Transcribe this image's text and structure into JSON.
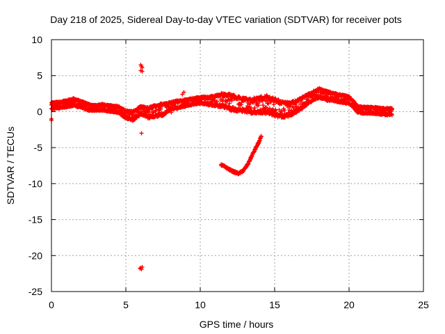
{
  "chart_data": {
    "type": "scatter",
    "title": "Day 218 of 2025, Sidereal Day-to-day VTEC variation (SDTVAR) for receiver pots",
    "xlabel": "GPS time / hours",
    "ylabel": "SDTVAR / TECUs",
    "xlim": [
      0,
      25
    ],
    "ylim": [
      -25,
      10
    ],
    "xticks": [
      0,
      5,
      10,
      15,
      20,
      25
    ],
    "yticks": [
      10,
      5,
      0,
      -5,
      -10,
      -15,
      -20,
      -25
    ],
    "grid": true,
    "marker": "plus",
    "color": "#ff0000",
    "series": [
      {
        "name": "main band",
        "kind": "band",
        "x": [
          0.0,
          0.5,
          1.0,
          1.5,
          2.0,
          2.5,
          3.0,
          3.5,
          4.0,
          4.5,
          5.0,
          5.5,
          6.0,
          6.5,
          7.0,
          7.5,
          8.0,
          8.5,
          9.0,
          9.5,
          10.0,
          10.5,
          11.0,
          11.5,
          12.0,
          12.5,
          13.0,
          13.5,
          14.0,
          14.5,
          15.0,
          15.5,
          16.0,
          16.5,
          17.0,
          17.5,
          18.0,
          18.5,
          19.0,
          19.5,
          20.0,
          20.3,
          20.6,
          21.0,
          21.5,
          22.0,
          22.5,
          22.9
        ],
        "y": [
          0.8,
          0.9,
          1.1,
          1.3,
          1.0,
          0.6,
          0.5,
          0.6,
          0.4,
          0.3,
          -0.4,
          -0.6,
          0.2,
          -0.2,
          0.1,
          0.3,
          0.8,
          1.0,
          1.2,
          1.4,
          1.6,
          1.5,
          1.5,
          1.6,
          1.3,
          1.1,
          0.9,
          0.8,
          0.9,
          1.0,
          0.6,
          0.3,
          0.3,
          0.8,
          1.4,
          2.1,
          2.6,
          2.2,
          2.0,
          1.8,
          1.6,
          1.0,
          0.3,
          0.2,
          0.2,
          0.1,
          0.0,
          0.0
        ],
        "halfwidth": [
          0.5,
          0.5,
          0.5,
          0.6,
          0.5,
          0.5,
          0.4,
          0.5,
          0.5,
          0.5,
          0.6,
          0.7,
          0.6,
          0.8,
          0.9,
          0.9,
          0.6,
          0.6,
          0.5,
          0.5,
          0.5,
          0.6,
          0.8,
          1.0,
          1.2,
          1.1,
          1.0,
          1.1,
          1.2,
          1.3,
          1.3,
          1.2,
          1.0,
          0.9,
          0.8,
          0.7,
          0.7,
          0.7,
          0.6,
          0.6,
          0.6,
          0.5,
          0.5,
          0.5,
          0.5,
          0.5,
          0.5,
          0.5
        ]
      },
      {
        "name": "arc",
        "kind": "curve",
        "x": [
          11.4,
          11.7,
          12.0,
          12.3,
          12.6,
          12.9,
          13.2,
          13.5,
          13.8,
          14.0,
          14.1
        ],
        "y": [
          -7.4,
          -7.7,
          -8.1,
          -8.4,
          -8.6,
          -8.2,
          -7.3,
          -6.0,
          -4.8,
          -4.0,
          -3.4
        ]
      },
      {
        "name": "outliers",
        "kind": "points",
        "x": [
          6.0,
          6.05,
          6.1,
          6.0,
          6.1,
          6.0,
          6.05,
          5.95,
          6.1,
          0.0,
          0.0,
          8.05,
          8.9,
          8.8,
          6.05
        ],
        "y": [
          6.5,
          6.3,
          6.1,
          5.7,
          5.6,
          -21.7,
          -21.9,
          -21.8,
          -21.6,
          -1.2,
          -1.0,
          -0.1,
          2.7,
          2.4,
          -3.0
        ]
      }
    ]
  }
}
